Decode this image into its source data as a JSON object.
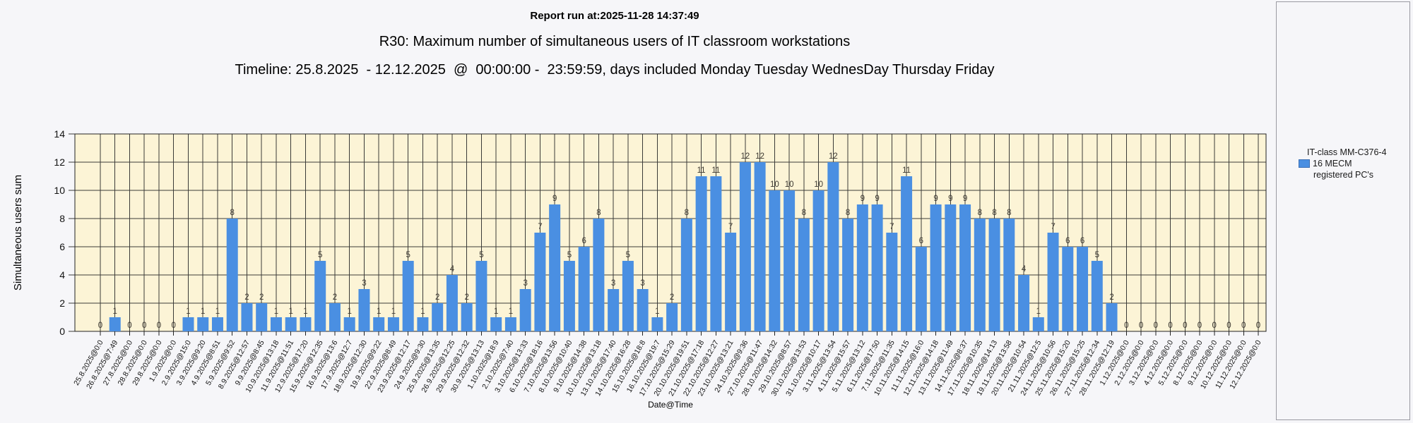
{
  "header": {
    "report_run": "Report run at:2025-11-28 14:37:49",
    "title": "R30: Maximum number of simultaneous users of IT classroom workstations",
    "timeline": "Timeline: 25.8.2025  - 12.12.2025  @  00:00:00 -  23:59:59, days included Monday Tuesday WednesDay Thursday Friday"
  },
  "legend": {
    "title": "IT-class MM-C376-4",
    "series_label": "16 MECM",
    "series_label2": "registered PC's",
    "swatch_color": "#4a8fe2"
  },
  "chart_data": {
    "type": "bar",
    "title": "R30: Maximum number of simultaneous users of IT classroom workstations",
    "xlabel": "Date@Time",
    "ylabel": "Simultaneous users sum",
    "ylim": [
      0,
      14
    ],
    "ytick_step": 2,
    "grid": true,
    "legend_position": "right",
    "bar_color": "#4a8fe2",
    "plot_bg": "#fcf4d6",
    "grid_color": "#3b3b38",
    "value_label_color": "#3e3a33",
    "categories": [
      "25.8.2025@0:0",
      "26.8.2025@7:49",
      "27.8.2025@0:0",
      "28.8.2025@0:0",
      "29.8.2025@0:0",
      "1.9.2025@0:0",
      "2.9.2025@15:0",
      "3.9.2025@9:20",
      "4.9.2025@8:51",
      "5.9.2025@9:52",
      "8.9.2025@12:57",
      "9.9.2025@8:45",
      "10.9.2025@13:18",
      "11.9.2025@11:51",
      "12.9.2025@17:20",
      "15.9.2025@12:35",
      "16.9.2025@13:6",
      "17.9.2025@12:7",
      "18.9.2025@12:30",
      "19.9.2025@9:22",
      "22.9.2025@8:49",
      "23.9.2025@12:17",
      "24.9.2025@9:30",
      "25.9.2025@13:35",
      "26.9.2025@12:25",
      "29.9.2025@12:32",
      "30.9.2025@13:13",
      "1.10.2025@18:9",
      "2.10.2025@7:40",
      "3.10.2025@13:33",
      "6.10.2025@18:16",
      "7.10.2025@13:56",
      "8.10.2025@10:40",
      "9.10.2025@14:38",
      "10.10.2025@13:18",
      "13.10.2025@17:40",
      "14.10.2025@16:28",
      "15.10.2025@18:8",
      "16.10.2025@19:7",
      "17.10.2025@15:29",
      "20.10.2025@19:51",
      "21.10.2025@17:18",
      "22.10.2025@12:27",
      "23.10.2025@13:21",
      "24.10.2025@9:36",
      "27.10.2025@11:47",
      "28.10.2025@14:32",
      "29.10.2025@8:57",
      "30.10.2025@13:53",
      "31.10.2025@10:17",
      "3.11.2025@13:54",
      "4.11.2025@15:57",
      "5.11.2025@13:12",
      "6.11.2025@17:50",
      "7.11.2025@11:35",
      "10.11.2025@14:15",
      "11.11.2025@16:0",
      "12.11.2025@14:18",
      "13.11.2025@11:49",
      "14.11.2025@8:37",
      "17.11.2025@10:35",
      "18.11.2025@14:13",
      "19.11.2025@13:58",
      "20.11.2025@10:54",
      "21.11.2025@12:5",
      "24.11.2025@10:56",
      "25.11.2025@15:20",
      "26.11.2025@15:25",
      "27.11.2025@12:34",
      "28.11.2025@12:19",
      "1.12.2025@0:0",
      "2.12.2025@0:0",
      "3.12.2025@0:0",
      "4.12.2025@0:0",
      "5.12.2025@0:0",
      "8.12.2025@0:0",
      "9.12.2025@0:0",
      "10.12.2025@0:0",
      "11.12.2025@0:0",
      "12.12.2025@0:0"
    ],
    "values": [
      0,
      1,
      0,
      0,
      0,
      0,
      1,
      1,
      1,
      8,
      2,
      2,
      1,
      1,
      1,
      5,
      2,
      1,
      3,
      1,
      1,
      5,
      1,
      2,
      4,
      2,
      5,
      1,
      1,
      3,
      7,
      9,
      5,
      6,
      8,
      3,
      5,
      3,
      1,
      2,
      8,
      11,
      11,
      7,
      12,
      12,
      10,
      10,
      8,
      10,
      12,
      8,
      9,
      9,
      7,
      11,
      6,
      9,
      9,
      9,
      8,
      8,
      8,
      4,
      1,
      7,
      6,
      6,
      5,
      2,
      0,
      0,
      0,
      0,
      0,
      0,
      0,
      0,
      0,
      0
    ]
  }
}
